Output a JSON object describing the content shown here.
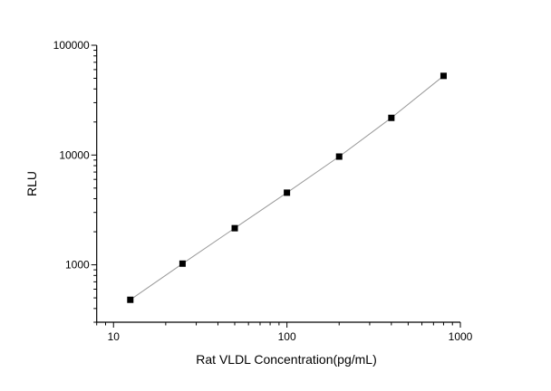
{
  "chart_data": {
    "type": "scatter",
    "title": "",
    "xlabel": "Rat VLDL Concentration(pg/mL)",
    "ylabel": "RLU",
    "x_scale": "log",
    "y_scale": "log",
    "xlim": [
      8,
      1000
    ],
    "ylim": [
      300,
      100000
    ],
    "x_ticks": [
      10,
      100,
      1000
    ],
    "x_tick_labels": [
      "10",
      "100",
      "1000"
    ],
    "y_ticks": [
      1000,
      10000,
      100000
    ],
    "y_tick_labels": [
      "1000",
      "10000",
      "100000"
    ],
    "grid": false,
    "legend": "none",
    "marker": "square",
    "marker_color": "#000000",
    "line_color": "#999999",
    "series": [
      {
        "x": [
          12.5,
          25,
          50,
          100,
          200,
          400,
          800
        ],
        "y": [
          480,
          1025,
          2155,
          4540,
          9680,
          21800,
          52600
        ]
      }
    ]
  }
}
